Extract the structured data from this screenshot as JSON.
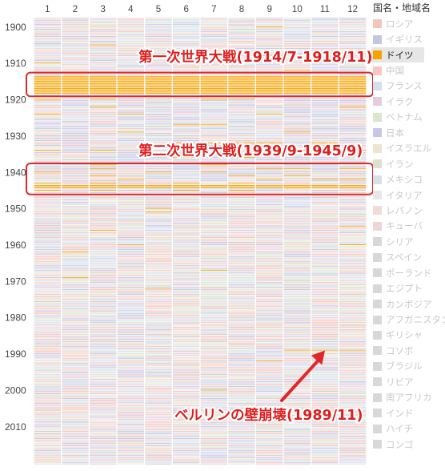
{
  "chart_data": {
    "type": "heatmap",
    "title": "",
    "x_tick_labels": [
      "1",
      "2",
      "3",
      "4",
      "5",
      "6",
      "7",
      "8",
      "9",
      "10",
      "11",
      "12"
    ],
    "y_tick_labels": [
      "1900",
      "1910",
      "1920",
      "1930",
      "1940",
      "1950",
      "1960",
      "1970",
      "1980",
      "1990",
      "2000",
      "2010"
    ],
    "y_range": [
      1898,
      2020
    ],
    "highlight_series": "ドイツ",
    "highlight_color": "#f5a300",
    "highlight_months": [
      {
        "year": 1900,
        "months": [
          9
        ]
      },
      {
        "year": 1905,
        "months": [
          3
        ]
      },
      {
        "year": 1908,
        "months": [
          9
        ]
      },
      {
        "year": 1910,
        "months": [
          1
        ]
      },
      {
        "year": 1912,
        "months": [
          10
        ]
      },
      {
        "year": 1914,
        "months": [
          1,
          2,
          3,
          4,
          5,
          6,
          7,
          8,
          9,
          10,
          11,
          12
        ]
      },
      {
        "year": 1915,
        "months": [
          1,
          2,
          3,
          4,
          5,
          6,
          7,
          8,
          9,
          10,
          11,
          12
        ]
      },
      {
        "year": 1916,
        "months": [
          1,
          2,
          3,
          4,
          5,
          6,
          7,
          8,
          9,
          10,
          11,
          12
        ]
      },
      {
        "year": 1917,
        "months": [
          1,
          2,
          3,
          4,
          5,
          6,
          7,
          8,
          9,
          10,
          11,
          12
        ]
      },
      {
        "year": 1918,
        "months": [
          1,
          2,
          3,
          4,
          5,
          6,
          7,
          8,
          9,
          10,
          11,
          12
        ]
      },
      {
        "year": 1919,
        "months": [
          1,
          5,
          7
        ]
      },
      {
        "year": 1920,
        "months": [
          1,
          3,
          7,
          8
        ]
      },
      {
        "year": 1922,
        "months": [
          3,
          12
        ]
      },
      {
        "year": 1924,
        "months": [
          1,
          4,
          9
        ]
      },
      {
        "year": 1927,
        "months": [
          6,
          7
        ]
      },
      {
        "year": 1929,
        "months": [
          4,
          10
        ]
      },
      {
        "year": 1932,
        "months": [
          6,
          7,
          8,
          9,
          11
        ]
      },
      {
        "year": 1934,
        "months": [
          1,
          3,
          10,
          12
        ]
      },
      {
        "year": 1936,
        "months": [
          6,
          8
        ]
      },
      {
        "year": 1938,
        "months": [
          3,
          7
        ]
      },
      {
        "year": 1939,
        "months": [
          3,
          9,
          10,
          12
        ]
      },
      {
        "year": 1940,
        "months": [
          1,
          5,
          7
        ]
      },
      {
        "year": 1941,
        "months": [
          3,
          8,
          10
        ]
      },
      {
        "year": 1942,
        "months": [
          4,
          9,
          11,
          12
        ]
      },
      {
        "year": 1943,
        "months": [
          1,
          3,
          6,
          8
        ]
      },
      {
        "year": 1944,
        "months": [
          1,
          2,
          3,
          4,
          5,
          6,
          7,
          8,
          9,
          10,
          11,
          12
        ]
      },
      {
        "year": 1945,
        "months": [
          1,
          3,
          6,
          8
        ]
      },
      {
        "year": 1950,
        "months": [
          5
        ]
      },
      {
        "year": 1951,
        "months": [
          5
        ]
      },
      {
        "year": 1955,
        "months": [
          12
        ]
      },
      {
        "year": 1956,
        "months": [
          3
        ]
      },
      {
        "year": 1960,
        "months": [
          4,
          12
        ]
      },
      {
        "year": 1962,
        "months": [
          2
        ]
      },
      {
        "year": 1967,
        "months": [
          7
        ]
      },
      {
        "year": 1969,
        "months": [
          2
        ]
      },
      {
        "year": 1972,
        "months": [
          5
        ]
      },
      {
        "year": 1989,
        "months": [
          10,
          11,
          12
        ]
      },
      {
        "year": 1992,
        "months": [
          9
        ]
      },
      {
        "year": 2000,
        "months": [
          7
        ]
      }
    ],
    "series": [
      {
        "name": "ロシア",
        "color": "#f2c6bd"
      },
      {
        "name": "イギリス",
        "color": "#c3c8de"
      },
      {
        "name": "ドイツ",
        "color": "#f5a300"
      },
      {
        "name": "中国",
        "color": "#f7c6c0"
      },
      {
        "name": "フランス",
        "color": "#d4e0ef"
      },
      {
        "name": "イラク",
        "color": "#e6cddd"
      },
      {
        "name": "ベトナム",
        "color": "#d9e8cc"
      },
      {
        "name": "日本",
        "color": "#c6c7e8"
      },
      {
        "name": "イスラエル",
        "color": "#ece3d2"
      },
      {
        "name": "イラン",
        "color": "#dde0ce"
      },
      {
        "name": "メキシコ",
        "color": "#d6e1ea"
      },
      {
        "name": "イタリア",
        "color": "#e8e8ea"
      },
      {
        "name": "レバノン",
        "color": "#f1dbd9"
      },
      {
        "name": "キューバ",
        "color": "#efd6d4"
      },
      {
        "name": "シリア",
        "color": "#d8d8d8"
      },
      {
        "name": "スペイン",
        "color": "#d8d8d8"
      },
      {
        "name": "ポーランド",
        "color": "#d8d8d8"
      },
      {
        "name": "エジプト",
        "color": "#d8d8d8"
      },
      {
        "name": "カンボジア",
        "color": "#d8d8d8"
      },
      {
        "name": "アフガニスタン",
        "color": "#d8d8d8"
      },
      {
        "name": "ギリシャ",
        "color": "#d8d8d8"
      },
      {
        "name": "コソボ",
        "color": "#d8d8d8"
      },
      {
        "name": "ブラジル",
        "color": "#d8d8d8"
      },
      {
        "name": "リビア",
        "color": "#d8d8d8"
      },
      {
        "name": "南アフリカ",
        "color": "#d8d8d8"
      },
      {
        "name": "インド",
        "color": "#d8d8d8"
      },
      {
        "name": "ハイチ",
        "color": "#d8d8d8"
      },
      {
        "name": "コンゴ",
        "color": "#d8d8d8"
      }
    ],
    "annotations": [
      {
        "text": "第一次世界大戦(1914/7-1918/11)",
        "box_years": [
          1914,
          1918
        ]
      },
      {
        "text": "第二次世界大戦(1939/9-1945/9)",
        "box_years": [
          1939,
          1945
        ]
      },
      {
        "text": "ベルリンの壁崩壊(1989/11)",
        "arrow_to": {
          "year": 1989,
          "month": 11
        }
      }
    ]
  },
  "legend": {
    "title": "国名・地域名"
  },
  "colors": {
    "annotation_text": "#e01e1e",
    "annotation_box": "#e02828",
    "annotation_text_outline": "#ffffff"
  }
}
